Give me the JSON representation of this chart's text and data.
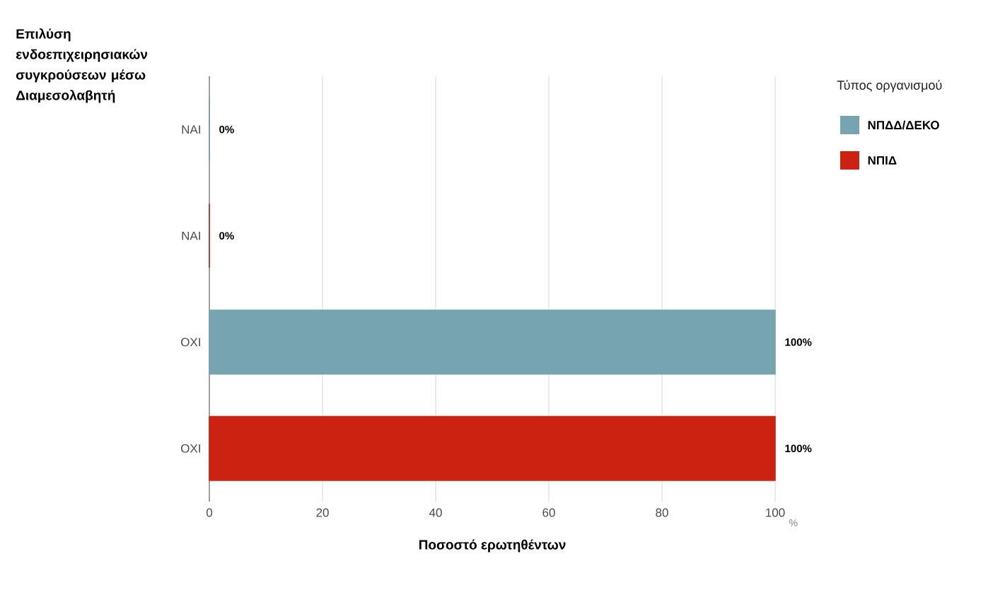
{
  "chart_data": {
    "type": "bar",
    "orientation": "horizontal",
    "stacked": true,
    "ylabel": "Επιλύση ενδοεπιχειρησιακών συγκρούσεων μέσω Διαμεσολαβητή",
    "xlabel": "Ποσοστό ερωτηθέντων",
    "legend_title": "Τύπος οργανισμού",
    "categories": [
      "ΝΑΙ",
      "ΝΑΙ",
      "ΟΧΙ",
      "ΟΧΙ"
    ],
    "series": [
      {
        "name": "ΝΠΔΔ/ΔΕΚΟ",
        "color": "#76a5af",
        "values": [
          0,
          null,
          100,
          null
        ],
        "value_labels": [
          "0%",
          null,
          "100%",
          null
        ]
      },
      {
        "name": "ΝΠΙΔ",
        "color": "#cc2211",
        "values": [
          null,
          0,
          null,
          100
        ],
        "value_labels": [
          null,
          "0%",
          null,
          "100%"
        ]
      }
    ],
    "xlim": [
      0,
      100
    ],
    "xticks": [
      0,
      20,
      40,
      60,
      80,
      100
    ],
    "annotations": [
      "%"
    ],
    "grid": "x",
    "legend": "top right"
  }
}
